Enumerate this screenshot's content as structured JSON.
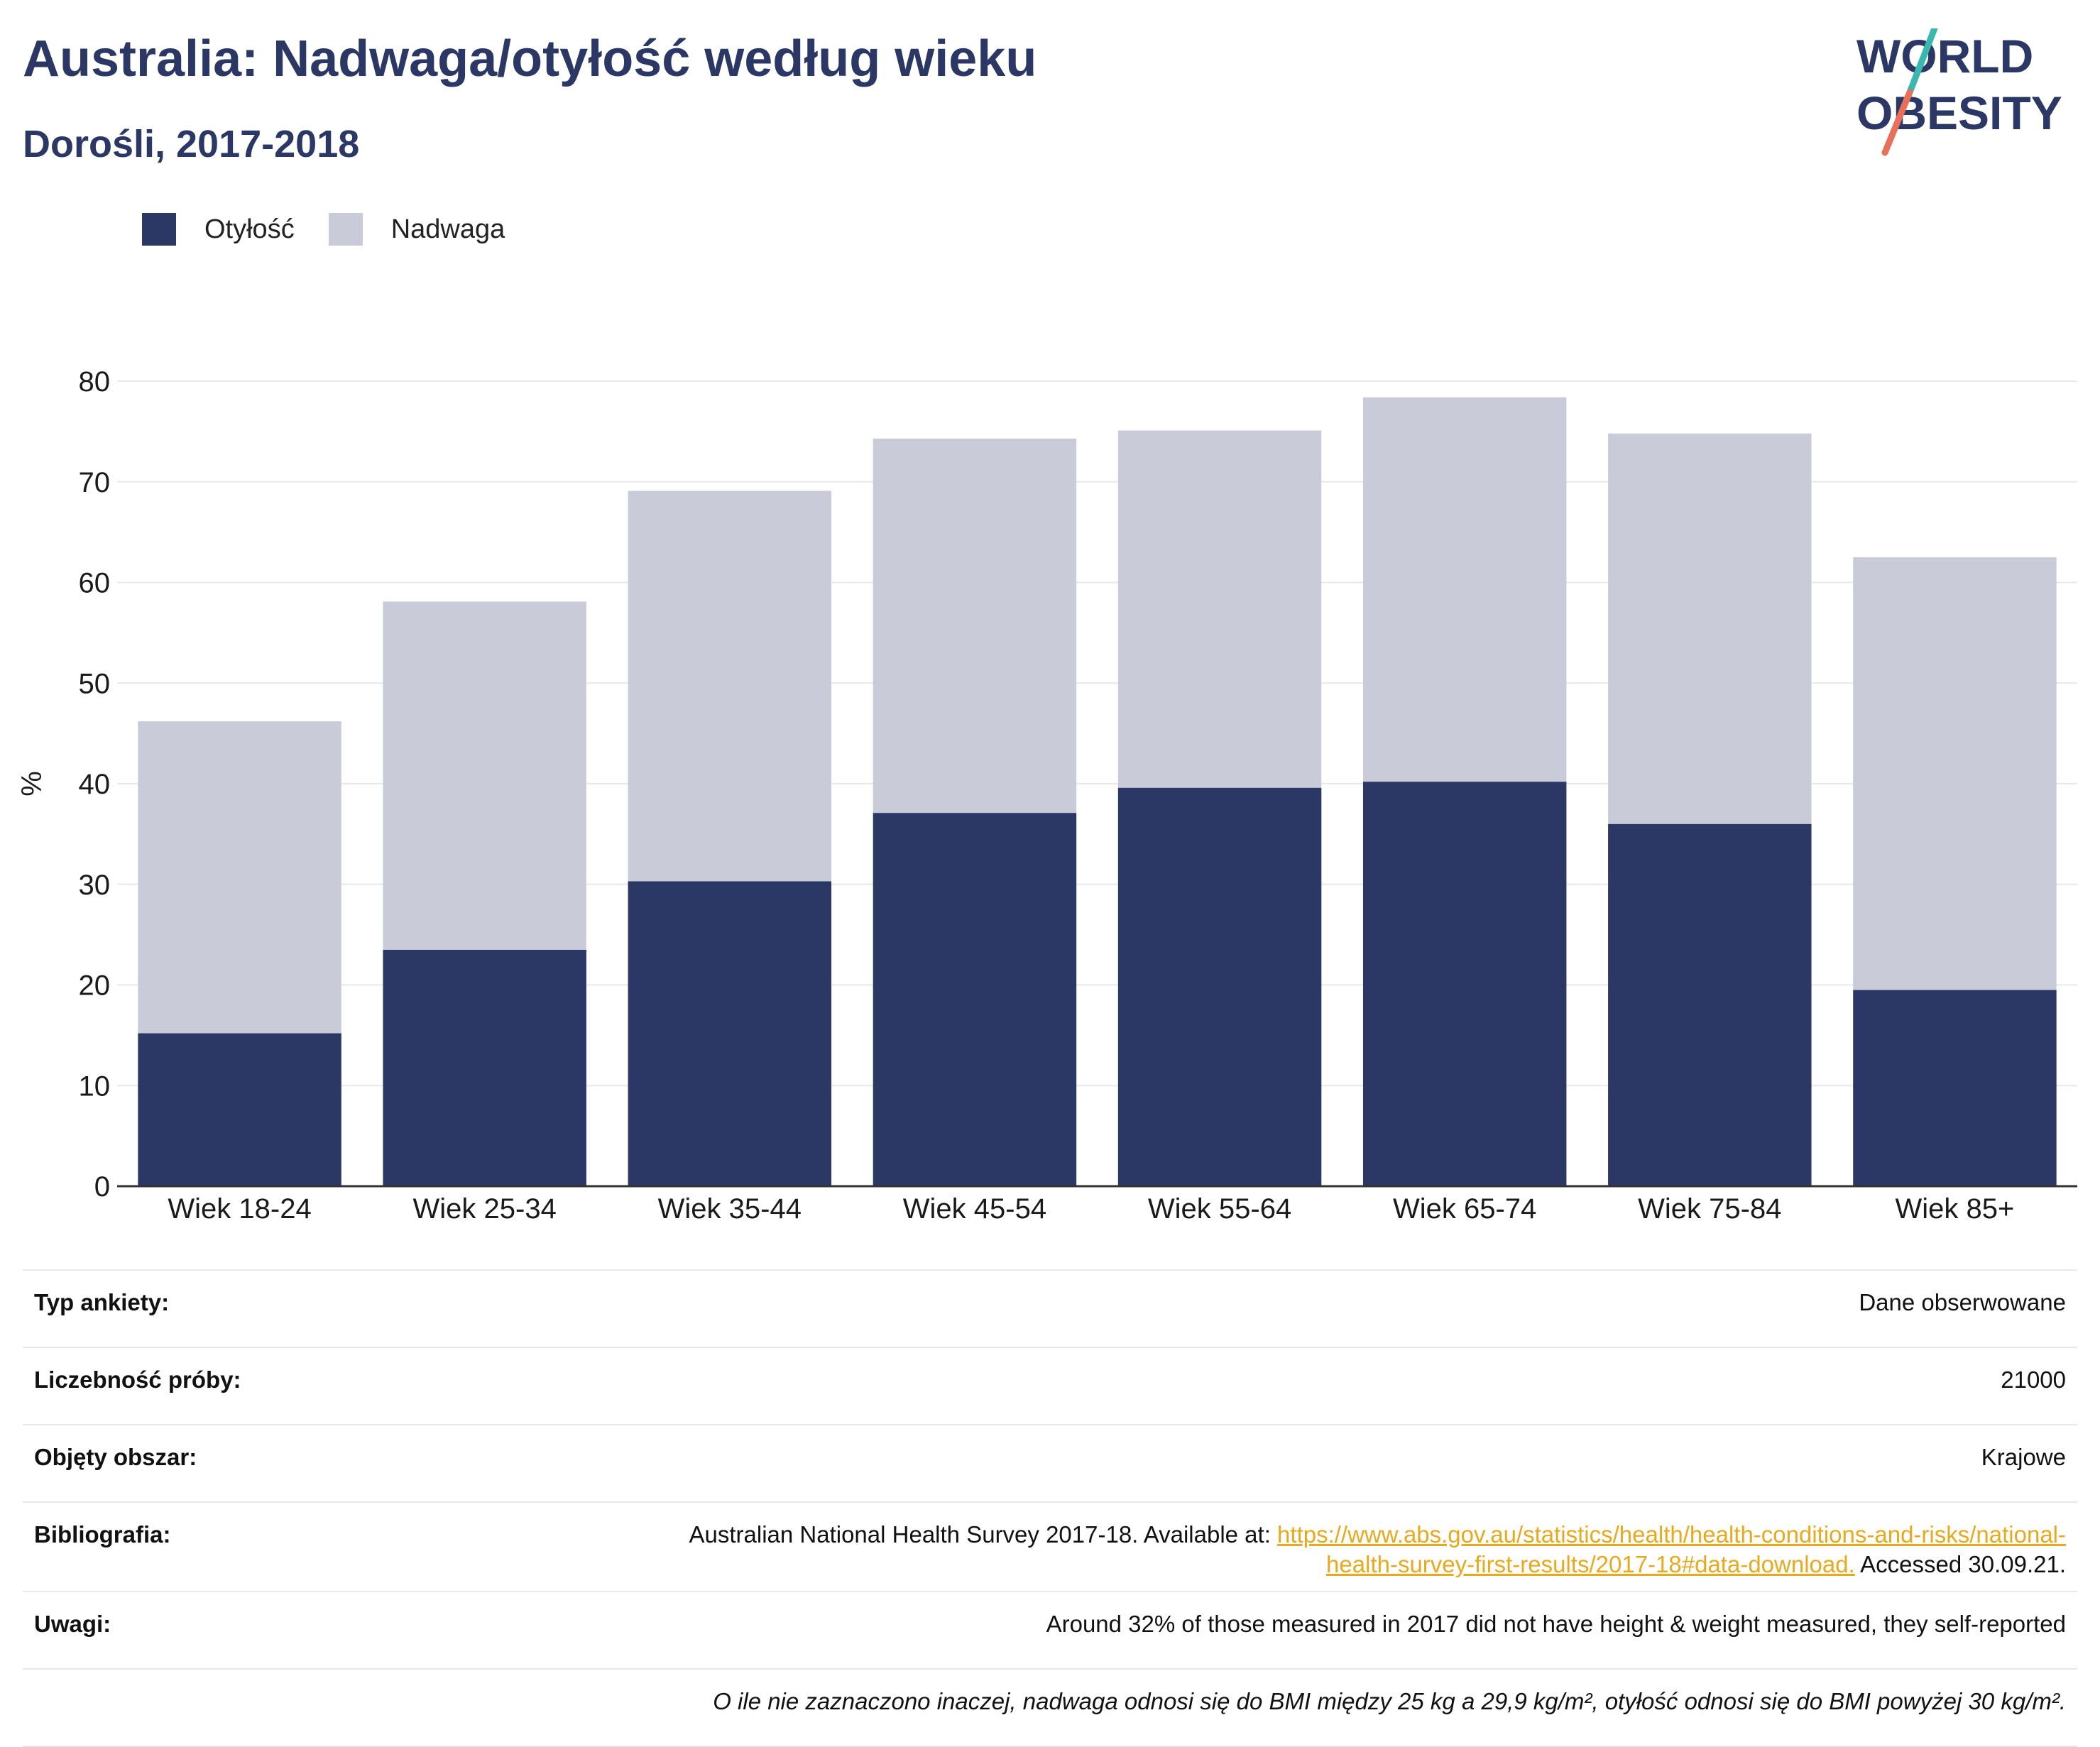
{
  "header": {
    "title": "Australia: Nadwaga/otyłość według wieku",
    "subtitle": "Dorośli, 2017-2018"
  },
  "logo": {
    "line1": "WORLD",
    "line2": "OBESITY",
    "stroke_colors": [
      "#3ab8b0",
      "#e8705a"
    ]
  },
  "colors": {
    "obesity": "#2b3764",
    "overweight": "#c9ccd8",
    "title": "#2b3764",
    "link": "#e8a91f"
  },
  "legend": {
    "obesity_label": "Otyłość",
    "overweight_label": "Nadwaga"
  },
  "chart_data": {
    "type": "bar",
    "stacked": true,
    "categories": [
      "Wiek 18-24",
      "Wiek 25-34",
      "Wiek 35-44",
      "Wiek 45-54",
      "Wiek 55-64",
      "Wiek 65-74",
      "Wiek 75-84",
      "Wiek 85+"
    ],
    "series": [
      {
        "name": "Otyłość",
        "values": [
          15.2,
          23.5,
          30.3,
          37.1,
          39.6,
          40.2,
          36.0,
          19.5
        ]
      },
      {
        "name": "Nadwaga",
        "values": [
          31.0,
          34.6,
          38.8,
          37.2,
          35.5,
          38.2,
          38.8,
          43.0
        ]
      }
    ],
    "ylabel": "%",
    "ylim": [
      0,
      80
    ],
    "yticks": [
      0,
      10,
      20,
      30,
      40,
      50,
      60,
      70,
      80
    ],
    "grid": true,
    "legend_position": "top-left"
  },
  "meta": {
    "survey_type_label": "Typ ankiety:",
    "survey_type_value": "Dane obserwowane",
    "sample_size_label": "Liczebność próby:",
    "sample_size_value": "21000",
    "area_label": "Objęty obszar:",
    "area_value": "Krajowe",
    "bibliography_label": "Bibliografia:",
    "bibliography_prefix": "Australian National Health Survey 2017-18. Available at: ",
    "bibliography_link_1": "https://www.abs.gov.au/statistics/health/health-conditions-and-risks/national-",
    "bibliography_link_2": "health-survey-first-results/2017-18#data-download.",
    "bibliography_suffix": " Accessed 30.09.21.",
    "notes_label": "Uwagi:",
    "notes_value": "Around 32% of those measured in 2017 did not have height & weight measured, they self-reported",
    "footnote": "O ile nie zaznaczono inaczej, nadwaga odnosi się do BMI między 25 kg a 29,9 kg/m², otyłość odnosi się do BMI powyżej 30 kg/m²."
  }
}
